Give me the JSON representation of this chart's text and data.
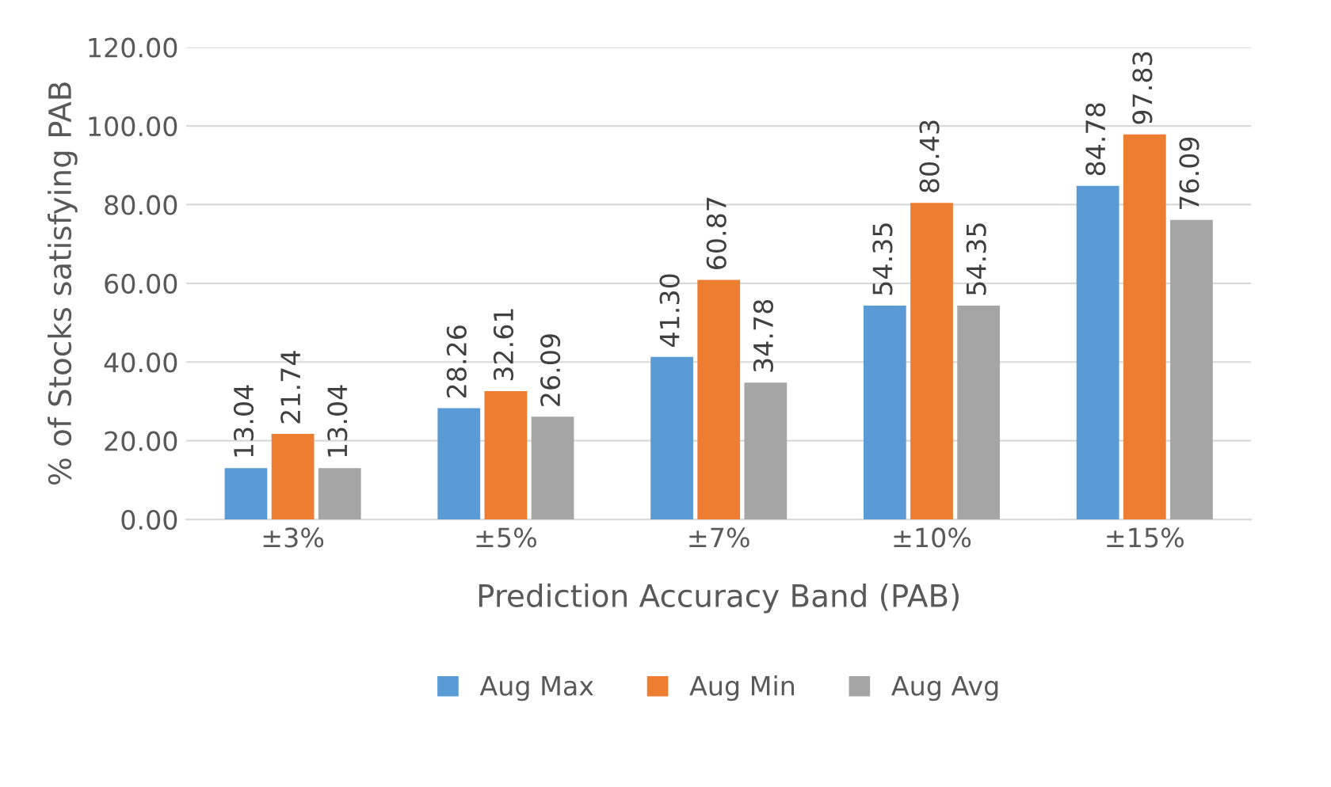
{
  "chart_data": {
    "type": "bar",
    "xlabel": "Prediction Accuracy Band (PAB)",
    "ylabel": "% of Stocks satisfying PAB",
    "categories": [
      "±3%",
      "±5%",
      "±7%",
      "±10%",
      "±15%"
    ],
    "series": [
      {
        "name": "Aug Max",
        "color": "#5b9bd5",
        "values": [
          13.04,
          28.26,
          41.3,
          54.35,
          84.78
        ],
        "value_labels": [
          "13.04",
          "28.26",
          "41.30",
          "54.35",
          "84.78"
        ]
      },
      {
        "name": "Aug Min",
        "color": "#ed7d31",
        "values": [
          21.74,
          32.61,
          60.87,
          80.43,
          97.83
        ],
        "value_labels": [
          "21.74",
          "32.61",
          "60.87",
          "80.43",
          "97.83"
        ]
      },
      {
        "name": "Aug Avg",
        "color": "#a5a5a5",
        "values": [
          13.04,
          26.09,
          34.78,
          54.35,
          76.09
        ],
        "value_labels": [
          "13.04",
          "26.09",
          "34.78",
          "54.35",
          "76.09"
        ]
      }
    ],
    "ylim": [
      0,
      120
    ],
    "yticks": [
      {
        "value": 0,
        "label": "0.00"
      },
      {
        "value": 20,
        "label": "20.00"
      },
      {
        "value": 40,
        "label": "40.00"
      },
      {
        "value": 60,
        "label": "60.00"
      },
      {
        "value": 80,
        "label": "80.00"
      },
      {
        "value": 100,
        "label": "100.00"
      },
      {
        "value": 120,
        "label": "120.00"
      }
    ],
    "grid": "y",
    "legend": "bottom"
  }
}
